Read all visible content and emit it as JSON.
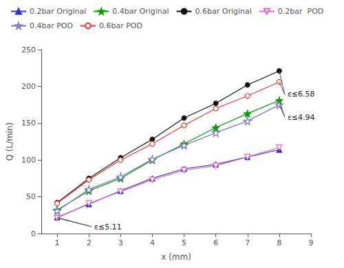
{
  "chart_data": {
    "type": "line",
    "x": [
      1,
      2,
      3,
      4,
      5,
      6,
      7,
      8
    ],
    "series": [
      {
        "name": "0.2bar Original",
        "color": "#3333cc",
        "marker": "triangle-up",
        "values": [
          22,
          40,
          58,
          75,
          88,
          94,
          104,
          114
        ]
      },
      {
        "name": "0.4bar Original",
        "color": "#009900",
        "marker": "star",
        "values": [
          32,
          58,
          75,
          100,
          122,
          144,
          163,
          181
        ]
      },
      {
        "name": "0.6bar Original",
        "color": "#111111",
        "marker": "circle",
        "values": [
          42,
          75,
          103,
          128,
          157,
          177,
          202,
          221
        ]
      },
      {
        "name": "0.2bar  POD",
        "color": "#dd66bb",
        "marker": "open-triangle-down",
        "values": [
          21,
          41,
          57,
          73,
          86,
          92,
          104,
          117
        ]
      },
      {
        "name": "0.4bar POD",
        "color": "#7777bb",
        "marker": "open-star",
        "values": [
          31,
          60,
          77,
          101,
          120,
          137,
          153,
          175
        ]
      },
      {
        "name": "0.6bar POD",
        "color": "#ee3333",
        "marker": "open-circle",
        "values": [
          41,
          73,
          100,
          122,
          147,
          170,
          187,
          206
        ]
      }
    ],
    "xlabel": "x (mm)",
    "ylabel": "Q (L/min)",
    "xlim": [
      0.5,
      9
    ],
    "xticks": [
      1,
      2,
      3,
      4,
      5,
      6,
      7,
      8,
      9
    ],
    "ylim": [
      0,
      250
    ],
    "yticks": [
      0,
      50,
      100,
      150,
      200,
      250
    ],
    "grid": false,
    "legend": "upper left",
    "annotations": [
      {
        "text": "ε≤5.11",
        "x": 1,
        "series": [
          "0.2bar Original",
          "0.2bar  POD"
        ]
      },
      {
        "text": "ε≤4.94",
        "x": 8,
        "series": [
          "0.4bar Original",
          "0.4bar POD"
        ]
      },
      {
        "text": "ε≤6.58",
        "x": 8,
        "series": [
          "0.6bar Original",
          "0.6bar POD"
        ]
      }
    ]
  }
}
